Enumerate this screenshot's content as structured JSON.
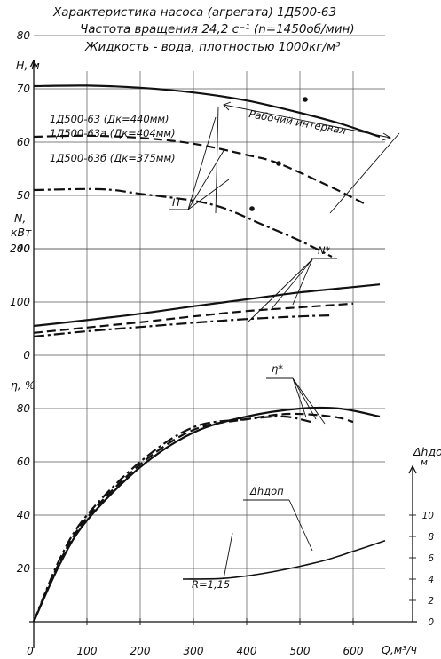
{
  "header": {
    "line1": "Характеристика насоса (агрегата) 1Д500-63",
    "line2": "Частота вращения 24,2 с⁻¹ (n=1450об/мин)",
    "line3": "Жидкость - вода, плотностью 1000кг/м³"
  },
  "chart_data": {
    "type": "line",
    "x_axis": {
      "label": "Q,м³/ч",
      "ticks": [
        "0",
        "100",
        "200",
        "300",
        "400",
        "500",
        "600"
      ],
      "range": [
        0,
        700
      ]
    },
    "head_panel": {
      "ylabel": "H, м",
      "ticks": [
        "40",
        "50",
        "60",
        "70",
        "80"
      ],
      "range": [
        35,
        85
      ],
      "series": [
        {
          "name": "1Д500-63 (Дк=440мм)",
          "style": "solid",
          "points": [
            [
              0,
              70.5
            ],
            [
              100,
              70.6
            ],
            [
              200,
              70.2
            ],
            [
              300,
              69.3
            ],
            [
              400,
              67.8
            ],
            [
              500,
              65.5
            ],
            [
              575,
              63.5
            ],
            [
              650,
              61.0
            ]
          ]
        },
        {
          "name": "1Д500-63а (Дк=404мм)",
          "style": "dash",
          "points": [
            [
              0,
              61.0
            ],
            [
              100,
              61.2
            ],
            [
              200,
              60.8
            ],
            [
              300,
              59.7
            ],
            [
              400,
              57.6
            ],
            [
              460,
              56.0
            ],
            [
              560,
              51.5
            ],
            [
              620,
              48.5
            ]
          ]
        },
        {
          "name": "1Д500-63б (Дк=375мм)",
          "style": "dashdot",
          "points": [
            [
              0,
              51.0
            ],
            [
              100,
              51.2
            ],
            [
              150,
              51.0
            ],
            [
              200,
              50.3
            ],
            [
              300,
              49.0
            ],
            [
              360,
              47.5
            ],
            [
              430,
              44.5
            ],
            [
              500,
              41.5
            ],
            [
              560,
              38.5
            ]
          ]
        }
      ],
      "operating_markers": [
        [
          510,
          68.0
        ],
        [
          460,
          56.0
        ],
        [
          410,
          47.5
        ]
      ],
      "annotations": {
        "working_range": "Рабочий интервал",
        "head_label": "H"
      }
    },
    "power_panel": {
      "ylabel": "N, кВт",
      "ticks": [
        "0",
        "100",
        "200"
      ],
      "range": [
        0,
        220
      ],
      "series": [
        {
          "name": "1Д500-63",
          "style": "solid",
          "points": [
            [
              0,
              55
            ],
            [
              100,
              66
            ],
            [
              200,
              78
            ],
            [
              300,
              92
            ],
            [
              400,
              105
            ],
            [
              500,
              118
            ],
            [
              600,
              128
            ],
            [
              650,
              133
            ]
          ]
        },
        {
          "name": "1Д500-63а",
          "style": "dash",
          "points": [
            [
              0,
              42
            ],
            [
              100,
              52
            ],
            [
              200,
              62
            ],
            [
              300,
              73
            ],
            [
              400,
              83
            ],
            [
              500,
              90
            ],
            [
              600,
              97
            ]
          ]
        },
        {
          "name": "1Д500-63б",
          "style": "dashdot",
          "points": [
            [
              0,
              35
            ],
            [
              100,
              45
            ],
            [
              200,
              53
            ],
            [
              300,
              61
            ],
            [
              400,
              68
            ],
            [
              500,
              73
            ],
            [
              560,
              75
            ]
          ]
        }
      ],
      "annotations": {
        "power_label": "N*"
      }
    },
    "efficiency_panel": {
      "ylabel": "η, %",
      "ticks": [
        "0",
        "20",
        "40",
        "60",
        "80"
      ],
      "range": [
        0,
        90
      ],
      "series": [
        {
          "name": "1Д500-63",
          "style": "solid",
          "points": [
            [
              0,
              0
            ],
            [
              50,
              22
            ],
            [
              100,
              38
            ],
            [
              200,
              58
            ],
            [
              300,
              71
            ],
            [
              400,
              77
            ],
            [
              500,
              80
            ],
            [
              575,
              80
            ],
            [
              650,
              77
            ]
          ]
        },
        {
          "name": "1Д500-63а",
          "style": "dash",
          "points": [
            [
              0,
              0
            ],
            [
              50,
              23
            ],
            [
              100,
              39
            ],
            [
              200,
              59
            ],
            [
              300,
              72
            ],
            [
              400,
              76
            ],
            [
              480,
              78
            ],
            [
              560,
              77
            ],
            [
              600,
              75
            ]
          ]
        },
        {
          "name": "1Д500-63б",
          "style": "dashdot",
          "points": [
            [
              0,
              0
            ],
            [
              50,
              24
            ],
            [
              100,
              40
            ],
            [
              200,
              60
            ],
            [
              300,
              73
            ],
            [
              400,
              76
            ],
            [
              470,
              77
            ],
            [
              520,
              75
            ]
          ]
        }
      ],
      "annotations": {
        "eff_label": "η*"
      }
    },
    "npsh_panel": {
      "ylabel": "Δhдоп, м",
      "ticks": [
        "0",
        "2",
        "4",
        "6",
        "8",
        "10"
      ],
      "range": [
        0,
        11
      ],
      "series": [
        {
          "name": "Δhдоп",
          "style": "solid",
          "points": [
            [
              280,
              4.0
            ],
            [
              350,
              4.05
            ],
            [
              400,
              4.3
            ],
            [
              450,
              4.7
            ],
            [
              500,
              5.2
            ],
            [
              550,
              5.8
            ],
            [
              600,
              6.6
            ],
            [
              660,
              7.6
            ]
          ]
        }
      ],
      "annotations": {
        "label": "Δhдоп",
        "r_value": "R=1,15"
      }
    }
  }
}
